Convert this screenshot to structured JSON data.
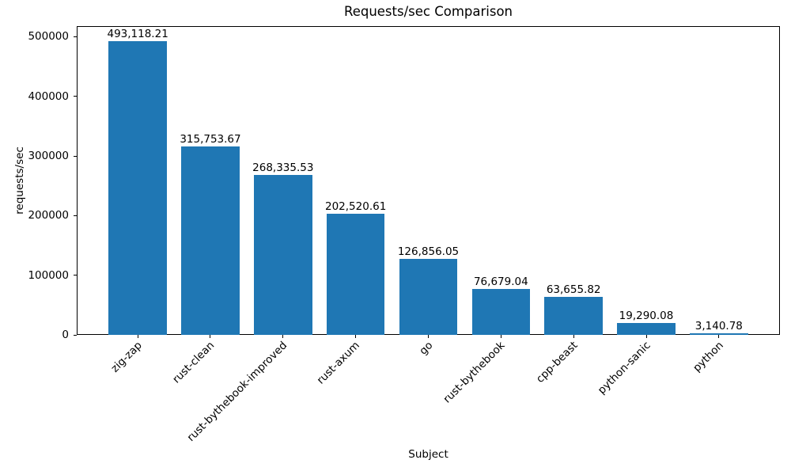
{
  "chart_data": {
    "type": "bar",
    "title": "Requests/sec Comparison",
    "xlabel": "Subject",
    "ylabel": "requests/sec",
    "categories": [
      "zig-zap",
      "rust-clean",
      "rust-bythebook-improved",
      "rust-axum",
      "go",
      "rust-bythebook",
      "cpp-beast",
      "python-sanic",
      "python"
    ],
    "values": [
      493118.21,
      315753.67,
      268335.53,
      202520.61,
      126856.05,
      76679.04,
      63655.82,
      19290.08,
      3140.78
    ],
    "value_labels": [
      "493,118.21",
      "315,753.67",
      "268,335.53",
      "202,520.61",
      "126,856.05",
      "76,679.04",
      "63,655.82",
      "19,290.08",
      "3,140.78"
    ],
    "ytick_values": [
      0,
      100000,
      200000,
      300000,
      400000,
      500000
    ],
    "ytick_labels": [
      "0",
      "100000",
      "200000",
      "300000",
      "400000",
      "500000"
    ],
    "ylim": [
      0,
      517774
    ],
    "bar_color": "#1f77b4",
    "text_color": "#000000",
    "grid": false,
    "legend": "none",
    "x_tick_rotation_deg": 45
  }
}
